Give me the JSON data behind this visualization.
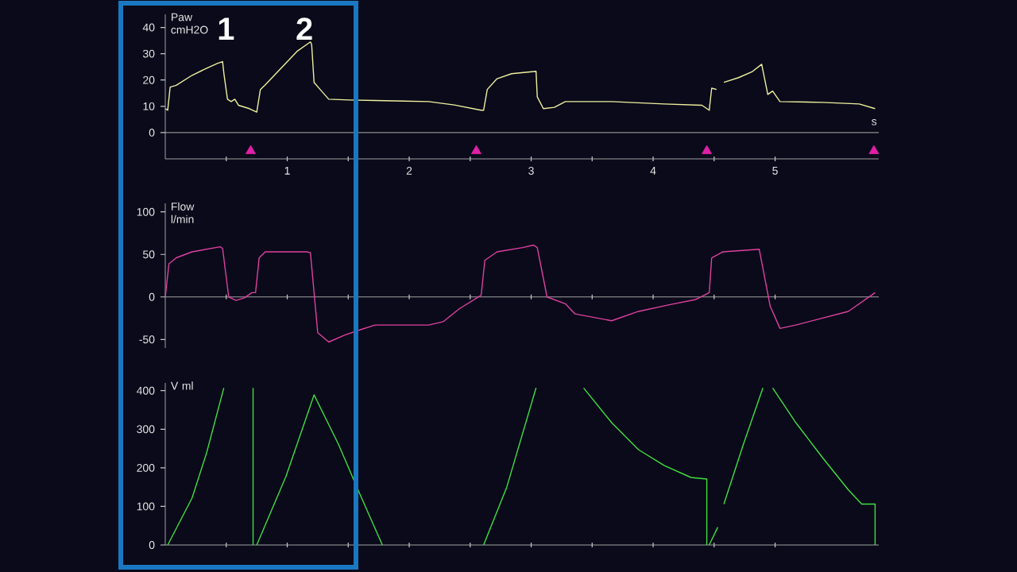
{
  "chart_data": [
    {
      "type": "line",
      "ylabel": "Paw cmH2O",
      "xlabel": "s",
      "annotations": [
        "1",
        "2"
      ],
      "xlim": [
        0,
        5.85
      ],
      "xticks": [
        {
          "value": 0.5,
          "label": null
        },
        1,
        {
          "value": 1.5,
          "label": null
        },
        2,
        {
          "value": 2.5,
          "label": null
        },
        3,
        {
          "value": 3.5,
          "label": null
        },
        4,
        {
          "value": 4.5,
          "label": null
        },
        5
      ],
      "ylim": [
        -10,
        45
      ],
      "yticks": [
        0,
        10,
        20,
        30,
        40
      ],
      "ref_lines": [
        {
          "axis": "y",
          "value": 0,
          "color": "#b0b0b0"
        }
      ],
      "series": [
        {
          "color": "#f0f0a0",
          "x": [
            0,
            0.02,
            0.04,
            0.09,
            0.22,
            0.34,
            0.43,
            0.47,
            0.48,
            0.51,
            0.54,
            0.57,
            0.6,
            0.69,
            0.75,
            0.78,
            0.82,
            0.95,
            1.08,
            1.19,
            1.2,
            1.22,
            1.27,
            1.34,
            1.51,
            1.72,
            2.16,
            2.37,
            2.59,
            2.61,
            2.64,
            2.72,
            2.84,
            3.04,
            3.05,
            3.1,
            3.19,
            3.28,
            3.66,
            4.09,
            4.4,
            4.46,
            4.48,
            4.52,
            4.55,
            4.58,
            4.7,
            4.81,
            4.89,
            4.94,
            4.98,
            5.04,
            5.39,
            5.69,
            5.82
          ],
          "values": [
            9.1,
            8.5,
            17.3,
            18,
            21.8,
            24.5,
            26.4,
            27,
            22.7,
            12.7,
            11.8,
            12.7,
            10.4,
            9.1,
            7.8,
            16.4,
            18.2,
            24.5,
            30.9,
            34.5,
            33.6,
            19.1,
            16.4,
            12.7,
            12.4,
            12.2,
            11.8,
            10.5,
            8.5,
            8.5,
            16.4,
            20.5,
            22.4,
            23.3,
            13.6,
            9.1,
            9.6,
            11.8,
            11.8,
            10.9,
            10.4,
            8.5,
            16.9,
            16.4,
            null,
            19.1,
            20.9,
            23.1,
            26,
            14.5,
            15.8,
            11.8,
            11.5,
            10.9,
            9.1
          ]
        },
        {
          "type": "scatter",
          "marker": "triangle",
          "color": "#e020a8",
          "x": [
            0.7,
            2.55,
            4.44,
            5.81
          ],
          "values": [
            -7,
            -7,
            -7,
            -7
          ]
        }
      ]
    },
    {
      "type": "line",
      "ylabel": "Flow l/min",
      "tick_labels": "y",
      "xlim": [
        0,
        5.85
      ],
      "xticks": [
        {
          "value": 0.5,
          "label": null
        },
        {
          "value": 1,
          "label": null
        },
        {
          "value": 1.5,
          "label": null
        },
        {
          "value": 2,
          "label": null
        },
        {
          "value": 2.5,
          "label": null
        },
        {
          "value": 3,
          "label": null
        },
        {
          "value": 3.5,
          "label": null
        },
        {
          "value": 4,
          "label": null
        },
        {
          "value": 4.5,
          "label": null
        },
        {
          "value": 5,
          "label": null
        }
      ],
      "ylim": [
        -60,
        110
      ],
      "yticks": [
        -50,
        0,
        50,
        100
      ],
      "series": [
        {
          "color": "#e040a0",
          "x": [
            0,
            0.03,
            0.09,
            0.22,
            0.45,
            0.47,
            0.52,
            0.58,
            0.65,
            0.71,
            0.74,
            0.77,
            0.82,
            1.16,
            1.19,
            1.25,
            1.34,
            1.47,
            1.59,
            1.72,
            2.16,
            2.28,
            2.41,
            2.59,
            2.62,
            2.72,
            2.93,
            3.02,
            3.05,
            3.13,
            3.28,
            3.36,
            3.66,
            3.88,
            4.14,
            4.35,
            4.46,
            4.48,
            4.57,
            4.87,
            4.96,
            5.04,
            5.17,
            5.6,
            5.82
          ],
          "values": [
            0,
            39,
            46,
            53,
            59,
            57,
            0,
            -4,
            -1,
            5,
            5,
            46,
            53,
            53,
            52,
            -42,
            -53,
            -45,
            -39,
            -33,
            -33,
            -29,
            -14,
            2,
            43,
            53,
            58,
            61,
            58,
            0,
            -8,
            -20,
            -28,
            -17,
            -9,
            -3,
            5,
            46,
            53,
            56,
            -11,
            -37,
            -33,
            -17,
            5
          ]
        }
      ]
    },
    {
      "type": "line",
      "ylabel": "V ml",
      "tick_labels": "y",
      "xlim": [
        0,
        5.85
      ],
      "xticks": [
        {
          "value": 0.5,
          "label": null
        },
        {
          "value": 1,
          "label": null
        },
        {
          "value": 1.5,
          "label": null
        },
        {
          "value": 2,
          "label": null
        },
        {
          "value": 2.5,
          "label": null
        },
        {
          "value": 3,
          "label": null
        },
        {
          "value": 3.5,
          "label": null
        },
        {
          "value": 4,
          "label": null
        },
        {
          "value": 4.5,
          "label": null
        },
        {
          "value": 5,
          "label": null
        }
      ],
      "ylim": [
        0,
        420
      ],
      "yticks": [
        0,
        100,
        200,
        300,
        400
      ],
      "series": [
        {
          "color": "#40e040",
          "x": [
            0.02,
            0.22,
            0.34,
            0.48,
            0.6,
            0.72,
            0.72,
            0.74,
            0.75,
            0.99,
            1.22,
            1.42,
            1.59,
            1.78,
            2.2,
            2.61,
            2.8,
            3.04,
            3.2,
            3.43,
            3.66,
            3.88,
            4.09,
            4.31,
            4.44,
            4.44,
            4.45,
            4.46,
            4.53,
            4.55,
            4.58,
            4.74,
            4.9,
            4.94,
            4.98,
            5.17,
            5.39,
            5.6,
            5.71,
            5.82,
            5.82
          ],
          "values": [
            0,
            122,
            240,
            407,
            null,
            407,
            0,
            null,
            0,
            178,
            389,
            261,
            136,
            0,
            null,
            0,
            150,
            407,
            null,
            407,
            317,
            247,
            206,
            175,
            171,
            0,
            null,
            0,
            46,
            null,
            106,
            261,
            407,
            null,
            407,
            317,
            226,
            143,
            106,
            106,
            0
          ]
        }
      ]
    }
  ]
}
